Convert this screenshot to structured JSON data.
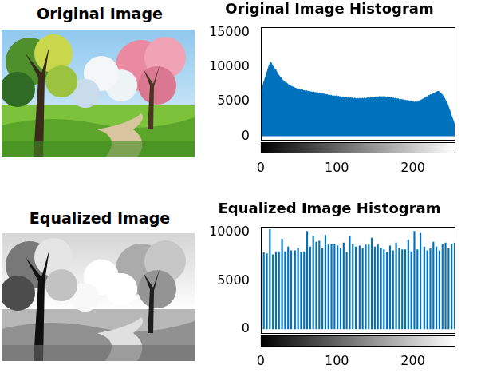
{
  "chart_data": [
    {
      "type": "image",
      "title": "Original Image"
    },
    {
      "type": "area",
      "title": "Original Image Histogram",
      "color": "#0072bd",
      "grid": false,
      "xlim": [
        0,
        255
      ],
      "xticks": [
        0,
        100,
        200
      ],
      "ylim": [
        -500,
        15800
      ],
      "yticks": [
        0,
        5000,
        10000,
        15000
      ],
      "x": [
        0,
        1,
        2,
        3,
        4,
        5,
        6,
        7,
        8,
        9,
        10,
        11,
        12,
        13,
        14,
        15,
        16,
        17,
        18,
        19,
        20,
        21,
        22,
        23,
        24,
        25,
        26,
        27,
        28,
        29,
        30,
        31,
        32,
        33,
        34,
        35,
        36,
        37,
        38,
        39,
        40,
        41,
        42,
        43,
        44,
        45,
        46,
        47,
        48,
        49,
        50,
        51,
        52,
        53,
        54,
        55,
        56,
        57,
        58,
        59,
        60,
        61,
        62,
        63,
        64,
        65,
        66,
        67,
        68,
        69,
        70,
        71,
        72,
        73,
        74,
        75,
        76,
        77,
        78,
        79,
        80,
        81,
        82,
        83,
        84,
        85,
        86,
        87,
        88,
        89,
        90,
        91,
        92,
        93,
        94,
        95,
        96,
        97,
        98,
        99,
        100,
        101,
        102,
        103,
        104,
        105,
        106,
        107,
        108,
        109,
        110,
        111,
        112,
        113,
        114,
        115,
        116,
        117,
        118,
        119,
        120,
        121,
        122,
        123,
        124,
        125,
        126,
        127,
        128,
        129,
        130,
        131,
        132,
        133,
        134,
        135,
        136,
        137,
        138,
        139,
        140,
        141,
        142,
        143,
        144,
        145,
        146,
        147,
        148,
        149,
        150,
        151,
        152,
        153,
        154,
        155,
        156,
        157,
        158,
        159,
        160,
        161,
        162,
        163,
        164,
        165,
        166,
        167,
        168,
        169,
        170,
        171,
        172,
        173,
        174,
        175,
        176,
        177,
        178,
        179,
        180,
        181,
        182,
        183,
        184,
        185,
        186,
        187,
        188,
        189,
        190,
        191,
        192,
        193,
        194,
        195,
        196,
        197,
        198,
        199,
        200,
        201,
        202,
        203,
        204,
        205,
        206,
        207,
        208,
        209,
        210,
        211,
        212,
        213,
        214,
        215,
        216,
        217,
        218,
        219,
        220,
        221,
        222,
        223,
        224,
        225,
        226,
        227,
        228,
        229,
        230,
        231,
        232,
        233,
        234,
        235,
        236,
        237,
        238,
        239,
        240,
        241,
        242,
        243,
        244,
        245,
        246,
        247,
        248,
        249,
        250,
        251,
        252,
        253,
        254,
        255
      ],
      "values": [
        5800,
        6300,
        6900,
        7400,
        7800,
        8100,
        8500,
        8800,
        9200,
        9500,
        9900,
        10200,
        10500,
        10700,
        10600,
        10300,
        10100,
        9900,
        9800,
        9600,
        9500,
        9300,
        9100,
        8900,
        8800,
        8600,
        8500,
        8400,
        8200,
        8100,
        8000,
        7900,
        7800,
        7700,
        7700,
        7600,
        7500,
        7400,
        7400,
        7300,
        7200,
        7200,
        7100,
        7100,
        7000,
        7000,
        6900,
        6900,
        6800,
        6800,
        6800,
        6700,
        6700,
        6700,
        6600,
        6700,
        6600,
        6600,
        6500,
        6600,
        6600,
        6500,
        6500,
        6400,
        6500,
        6400,
        6400,
        6400,
        6300,
        6400,
        6400,
        6300,
        6300,
        6300,
        6200,
        6300,
        6200,
        6200,
        6200,
        6100,
        6200,
        6100,
        6100,
        6100,
        6000,
        6100,
        6000,
        6000,
        6000,
        5900,
        6000,
        5900,
        5900,
        5900,
        5800,
        5900,
        5800,
        5800,
        5800,
        5800,
        5800,
        5700,
        5800,
        5700,
        5700,
        5700,
        5700,
        5600,
        5700,
        5600,
        5600,
        5600,
        5600,
        5600,
        5500,
        5600,
        5500,
        5500,
        5600,
        5500,
        5500,
        5500,
        5400,
        5500,
        5500,
        5400,
        5400,
        5500,
        5400,
        5400,
        5500,
        5400,
        5400,
        5400,
        5500,
        5400,
        5500,
        5500,
        5400,
        5500,
        5500,
        5500,
        5600,
        5500,
        5500,
        5600,
        5600,
        5500,
        5600,
        5600,
        5600,
        5600,
        5700,
        5600,
        5600,
        5700,
        5700,
        5600,
        5700,
        5700,
        5700,
        5700,
        5600,
        5700,
        5700,
        5600,
        5700,
        5600,
        5600,
        5600,
        5500,
        5600,
        5500,
        5500,
        5500,
        5500,
        5400,
        5500,
        5400,
        5400,
        5400,
        5400,
        5300,
        5400,
        5300,
        5300,
        5300,
        5200,
        5300,
        5200,
        5200,
        5200,
        5100,
        5200,
        5100,
        5100,
        5100,
        5000,
        5100,
        5000,
        5000,
        5000,
        4900,
        5000,
        5000,
        4900,
        5000,
        5000,
        5100,
        5100,
        5200,
        5200,
        5300,
        5300,
        5400,
        5500,
        5500,
        5600,
        5700,
        5700,
        5800,
        5900,
        5900,
        6000,
        6000,
        6100,
        6100,
        6200,
        6200,
        6300,
        6300,
        6400,
        6400,
        6500,
        6400,
        6300,
        6300,
        6200,
        6100,
        5900,
        5800,
        5600,
        5400,
        5200,
        5000,
        4800,
        4500,
        4200,
        3900,
        3600,
        3300,
        2900,
        2600,
        2300,
        2000,
        1600
      ]
    },
    {
      "type": "image",
      "title": "Equalized Image"
    },
    {
      "type": "bar",
      "title": "Equalized Image Histogram",
      "color": "#0072bd",
      "grid": false,
      "xlim": [
        0,
        255
      ],
      "xticks": [
        0,
        100,
        200
      ],
      "ylim": [
        -400,
        10600
      ],
      "yticks": [
        0,
        5000,
        10000
      ],
      "x": [
        0,
        4,
        8,
        12,
        16,
        20,
        24,
        28,
        32,
        36,
        40,
        45,
        49,
        53,
        57,
        61,
        65,
        69,
        73,
        77,
        81,
        85,
        89,
        93,
        97,
        101,
        105,
        109,
        113,
        117,
        121,
        125,
        130,
        134,
        138,
        142,
        146,
        150,
        154,
        158,
        162,
        166,
        170,
        174,
        178,
        182,
        186,
        190,
        194,
        198,
        202,
        206,
        210,
        215,
        219,
        223,
        227,
        231,
        235,
        239,
        243,
        247,
        251,
        255
      ],
      "values": [
        7900,
        7900,
        7800,
        10300,
        7700,
        8000,
        8000,
        9300,
        8000,
        8500,
        8100,
        8100,
        8400,
        7900,
        8000,
        10100,
        8500,
        9600,
        9000,
        9100,
        8300,
        9700,
        8700,
        8800,
        8800,
        8600,
        8300,
        8900,
        7900,
        9600,
        8800,
        8500,
        8600,
        8300,
        8700,
        8700,
        9400,
        8500,
        8700,
        8400,
        8200,
        7900,
        8600,
        8100,
        8900,
        8400,
        8200,
        8200,
        9200,
        8000,
        10100,
        8200,
        9900,
        8500,
        8100,
        8300,
        9000,
        8500,
        8100,
        8800,
        8900,
        8300,
        8800,
        8900
      ]
    }
  ]
}
